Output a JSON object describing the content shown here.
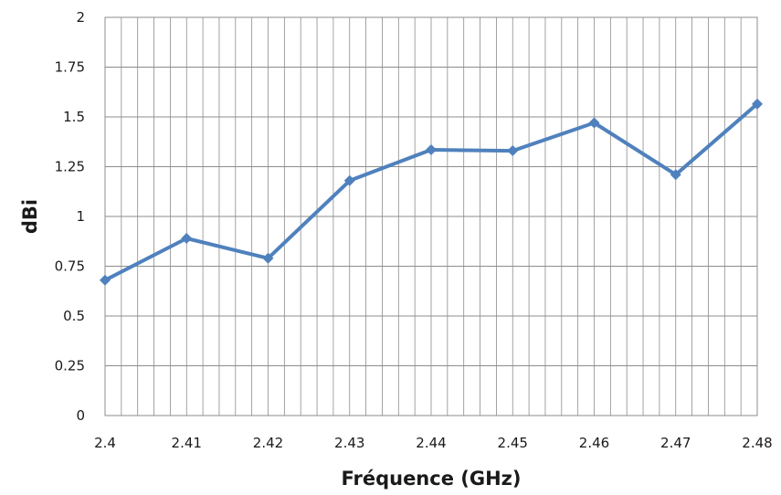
{
  "chart_data": {
    "type": "line",
    "title": "",
    "xlabel": "Fréquence (GHz)",
    "ylabel": "dBi",
    "xlim": [
      2.4,
      2.48
    ],
    "ylim": [
      0,
      2
    ],
    "x_ticks": [
      "2.4",
      "2.41",
      "2.42",
      "2.43",
      "2.44",
      "2.45",
      "2.46",
      "2.47",
      "2.48"
    ],
    "y_ticks": [
      "0",
      "0.25",
      "0.5",
      "0.75",
      "1",
      "1.25",
      "1.5",
      "1.75",
      "2"
    ],
    "x_minor_step": 0.002,
    "y_major_step": 0.25,
    "grid": true,
    "legend": "none",
    "series": [
      {
        "color": "#4f81bd",
        "marker": "diamond",
        "x": [
          2.4,
          2.41,
          2.42,
          2.43,
          2.44,
          2.45,
          2.46,
          2.47,
          2.48
        ],
        "y": [
          0.68,
          0.89,
          0.79,
          1.18,
          1.335,
          1.33,
          1.47,
          1.21,
          1.565
        ]
      }
    ]
  }
}
